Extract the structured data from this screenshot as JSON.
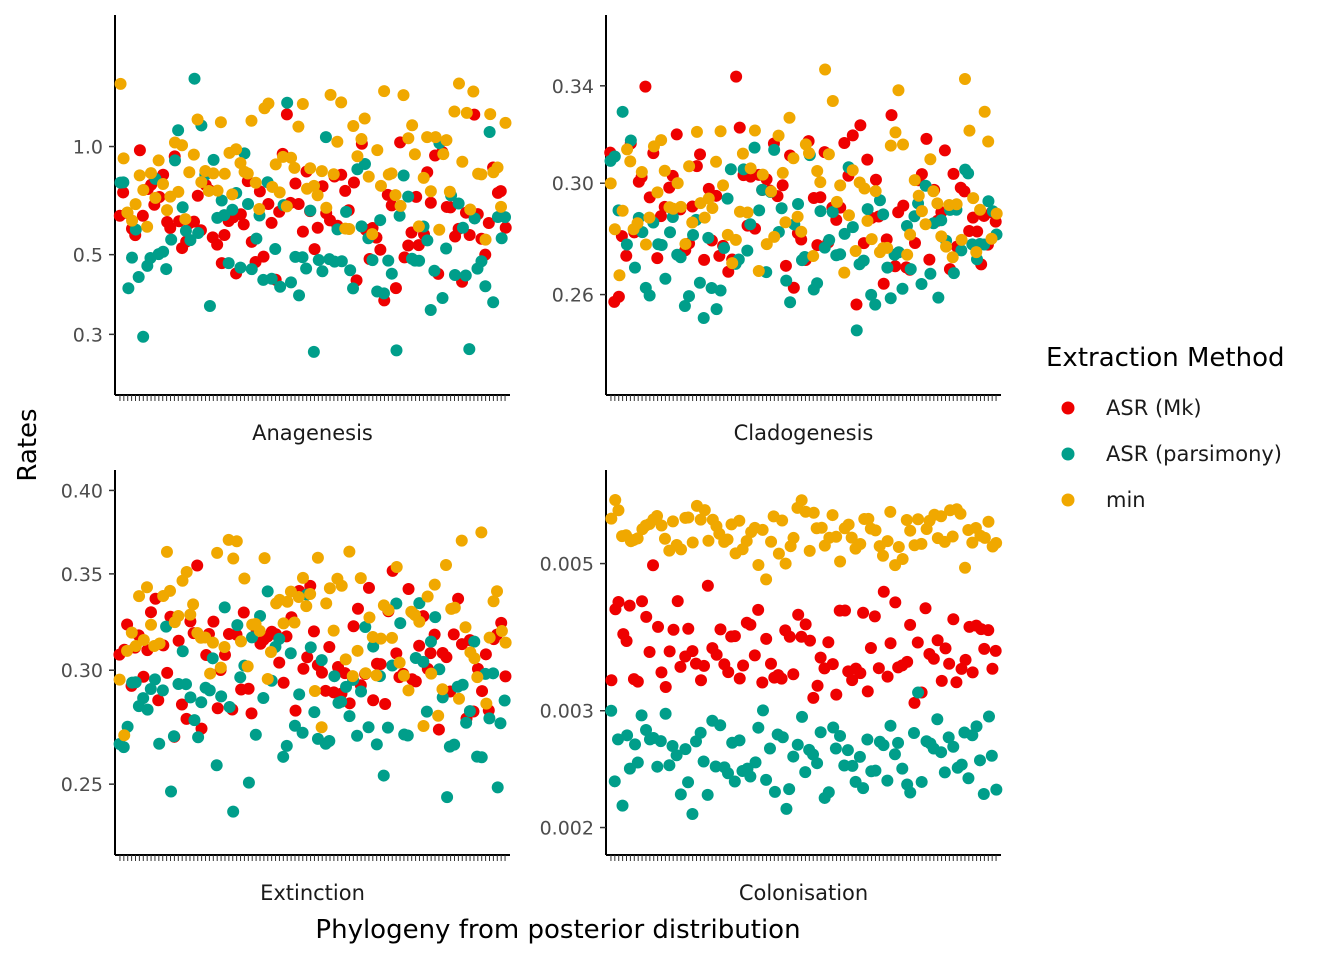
{
  "chart_data": {
    "type": "scatter",
    "xlabel": "Phylogeny from posterior distribution",
    "ylabel": "Rates",
    "n_x": 100,
    "grid": false,
    "legend": {
      "title": "Extraction Method",
      "position": "right",
      "entries": [
        {
          "name": "ASR (Mk)",
          "color": "#ee0000"
        },
        {
          "name": "ASR (parsimony)",
          "color": "#009e8a"
        },
        {
          "name": "min",
          "color": "#f0a800"
        }
      ]
    },
    "panels": [
      {
        "name": "Anagenesis",
        "scale": "log",
        "ylim": [
          0.21,
          2.25
        ],
        "ticks": [
          0.3,
          0.5,
          1.0
        ],
        "tick_labels": [
          "0.3",
          "0.5",
          "1.0"
        ],
        "series": [
          {
            "name": "ASR (Mk)",
            "range": [
              0.35,
              1.5
            ],
            "center": 0.62
          },
          {
            "name": "ASR (parsimony)",
            "range": [
              0.25,
              1.7
            ],
            "center": 0.5
          },
          {
            "name": "min",
            "range": [
              0.45,
              2.1
            ],
            "center": 0.85
          }
        ]
      },
      {
        "name": "Cladogenesis",
        "scale": "log",
        "ylim": [
          0.23,
          0.37
        ],
        "ticks": [
          0.26,
          0.3,
          0.34
        ],
        "tick_labels": [
          "0.26",
          "0.30",
          "0.34"
        ],
        "series": [
          {
            "name": "ASR (Mk)",
            "range": [
              0.245,
              0.355
            ],
            "center": 0.29
          },
          {
            "name": "ASR (parsimony)",
            "range": [
              0.235,
              0.35
            ],
            "center": 0.28
          },
          {
            "name": "min",
            "range": [
              0.25,
              0.36
            ],
            "center": 0.295
          }
        ]
      },
      {
        "name": "Extinction",
        "scale": "log",
        "ylim": [
          0.225,
          0.41
        ],
        "ticks": [
          0.25,
          0.3,
          0.35,
          0.4
        ],
        "tick_labels": [
          "0.25",
          "0.30",
          "0.35",
          "0.40"
        ],
        "series": [
          {
            "name": "ASR (Mk)",
            "range": [
              0.255,
              0.37
            ],
            "center": 0.305
          },
          {
            "name": "ASR (parsimony)",
            "range": [
              0.228,
              0.355
            ],
            "center": 0.285
          },
          {
            "name": "min",
            "range": [
              0.265,
              0.4
            ],
            "center": 0.325
          }
        ]
      },
      {
        "name": "Colonisation",
        "scale": "log",
        "ylim": [
          0.00185,
          0.0068
        ],
        "ticks": [
          0.002,
          0.003,
          0.005
        ],
        "tick_labels": [
          "0.002",
          "0.003",
          "0.005"
        ],
        "series": [
          {
            "name": "ASR (Mk)",
            "range": [
              0.0029,
              0.0052
            ],
            "center": 0.0037
          },
          {
            "name": "ASR (parsimony)",
            "range": [
              0.0019,
              0.0034
            ],
            "center": 0.0026
          },
          {
            "name": "min",
            "range": [
              0.0045,
              0.0066
            ],
            "center": 0.0056
          }
        ]
      }
    ]
  }
}
